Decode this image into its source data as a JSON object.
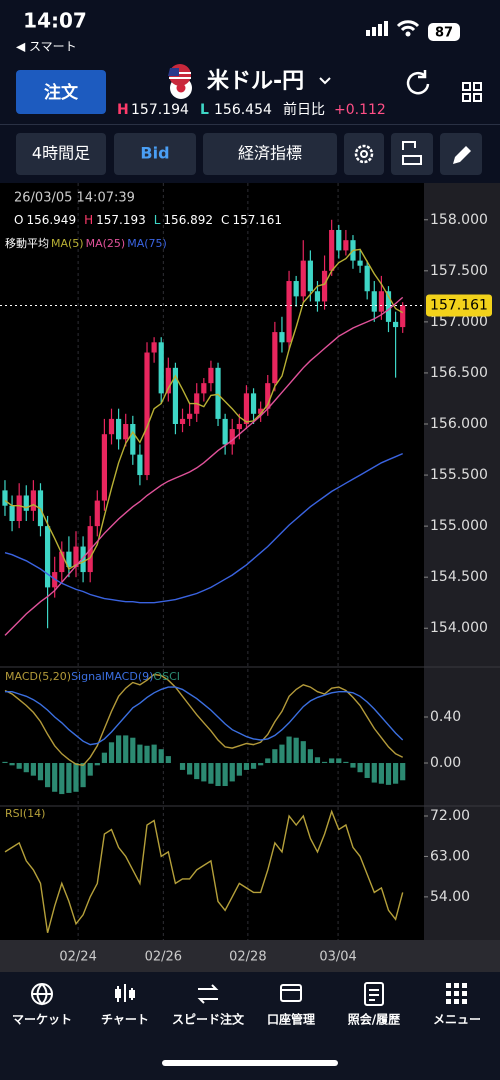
{
  "status_bar": {
    "time": "14:07",
    "back": "◀ スマート",
    "battery": "87"
  },
  "header": {
    "order_button": "注文",
    "title": "米ドル-円",
    "high_label": "H",
    "high": "157.194",
    "low_label": "L",
    "low": "156.454",
    "change_label": "前日比",
    "change": "+0.112"
  },
  "toolbar": {
    "timeframe": "4時間足",
    "price_type": "Bid",
    "indicators_button": "経済指標"
  },
  "chart_data": [
    {
      "type": "candlestick",
      "timestamp": "26/03/05 14:07:39",
      "ohlc_labels": [
        "O",
        "H",
        "L",
        "C"
      ],
      "overlay_label": "移動平均",
      "up_color": "#e8265e",
      "down_color": "#3ed6c6",
      "last_price_color": "#f2d21b",
      "grid": true,
      "xlim": [
        -0.7,
        59
      ],
      "xticks": [
        {
          "value": 10.3,
          "label": "02/24"
        },
        {
          "value": 22.3,
          "label": "02/26"
        },
        {
          "value": 34.2,
          "label": "02/28"
        },
        {
          "value": 46.9,
          "label": "03/04"
        }
      ],
      "ylim": [
        153.64,
        158.36
      ],
      "yticks": [
        {
          "value": 158,
          "label": "158.000"
        },
        {
          "value": 157.5,
          "label": "157.500"
        },
        {
          "value": 157,
          "label": "157.000"
        },
        {
          "value": 156.5,
          "label": "156.500"
        },
        {
          "value": 156,
          "label": "156.000"
        },
        {
          "value": 155.5,
          "label": "155.500"
        },
        {
          "value": 155,
          "label": "155.000"
        },
        {
          "value": 154.5,
          "label": "154.500"
        },
        {
          "value": 154,
          "label": "154.000"
        }
      ],
      "open": [
        155.35,
        155.2,
        155.05,
        155.3,
        155.15,
        155.35,
        155.0,
        154.4,
        154.55,
        154.75,
        154.6,
        154.8,
        154.55,
        155.0,
        155.25,
        155.9,
        156.05,
        155.85,
        156.0,
        155.7,
        155.5,
        156.7,
        156.8,
        156.3,
        156.55,
        156.0,
        156.05,
        156.1,
        156.3,
        156.4,
        156.55,
        156.05,
        155.8,
        155.95,
        156.0,
        156.3,
        156.1,
        156.15,
        156.4,
        156.9,
        156.8,
        157.4,
        157.25,
        157.6,
        157.3,
        157.2,
        157.5,
        157.9,
        157.7,
        157.8,
        157.6,
        157.55,
        157.3,
        157.1,
        157.3,
        157.0,
        156.949
      ],
      "high": [
        155.45,
        155.3,
        155.42,
        155.4,
        155.45,
        155.42,
        155.1,
        154.7,
        154.85,
        154.9,
        154.95,
        154.9,
        155.1,
        155.35,
        156.05,
        156.15,
        156.15,
        156.1,
        156.08,
        155.8,
        156.8,
        156.85,
        156.85,
        156.65,
        156.6,
        156.15,
        156.2,
        156.4,
        156.45,
        156.62,
        156.6,
        156.1,
        156.05,
        156.1,
        156.38,
        156.35,
        156.22,
        156.48,
        157.0,
        157.05,
        157.5,
        157.45,
        157.8,
        157.7,
        157.4,
        157.65,
        158.0,
        157.95,
        157.9,
        157.85,
        157.7,
        157.6,
        157.4,
        157.45,
        157.35,
        157.1,
        157.193
      ],
      "low": [
        155.1,
        154.95,
        154.98,
        155.05,
        155.05,
        154.9,
        154.0,
        154.3,
        154.45,
        154.5,
        154.5,
        154.45,
        154.45,
        154.9,
        155.15,
        155.8,
        155.75,
        155.78,
        155.6,
        155.4,
        155.45,
        156.6,
        156.2,
        156.22,
        155.9,
        155.92,
        155.98,
        156.02,
        156.22,
        156.32,
        155.98,
        155.7,
        155.7,
        155.85,
        155.95,
        156.0,
        156.02,
        156.08,
        156.32,
        156.7,
        156.72,
        157.15,
        157.2,
        157.2,
        157.1,
        157.12,
        157.45,
        157.62,
        157.65,
        157.52,
        157.48,
        157.22,
        157.0,
        157.02,
        156.9,
        156.454,
        156.892
      ],
      "close": [
        155.2,
        155.05,
        155.3,
        155.15,
        155.35,
        155.0,
        154.4,
        154.55,
        154.75,
        154.6,
        154.8,
        154.55,
        155.0,
        155.25,
        155.9,
        156.05,
        155.85,
        156.0,
        155.7,
        155.5,
        156.7,
        156.8,
        156.3,
        156.55,
        156.0,
        156.05,
        156.1,
        156.3,
        156.4,
        156.55,
        156.05,
        155.8,
        155.95,
        156.0,
        156.3,
        156.1,
        156.15,
        156.4,
        156.9,
        156.8,
        157.4,
        157.25,
        157.6,
        157.3,
        157.2,
        157.5,
        157.9,
        157.7,
        157.8,
        157.6,
        157.55,
        157.3,
        157.1,
        157.3,
        157.0,
        156.949,
        157.161
      ],
      "series": [
        {
          "name": "MA(5)",
          "color": "#b8b034",
          "values": [
            155.25,
            155.2,
            155.2,
            155.18,
            155.21,
            155.17,
            155.02,
            154.88,
            154.73,
            154.58,
            154.62,
            154.65,
            154.69,
            154.82,
            155.1,
            155.37,
            155.62,
            155.81,
            155.92,
            155.82,
            155.97,
            156.15,
            156.2,
            156.35,
            156.47,
            156.34,
            156.2,
            156.2,
            156.17,
            156.28,
            156.29,
            156.22,
            156.15,
            156.07,
            156.02,
            156.03,
            156.1,
            156.19,
            156.37,
            156.47,
            156.73,
            156.95,
            157.19,
            157.27,
            157.35,
            157.37,
            157.5,
            157.58,
            157.62,
            157.7,
            157.71,
            157.59,
            157.47,
            157.37,
            157.25,
            157.13,
            157.09
          ]
        },
        {
          "name": "MA(25)",
          "color": "#e0529a",
          "values": [
            153.93,
            154.0,
            154.07,
            154.14,
            154.2,
            154.26,
            154.31,
            154.37,
            154.45,
            154.53,
            154.61,
            154.69,
            154.77,
            154.85,
            154.93,
            155.0,
            155.07,
            155.13,
            155.19,
            155.24,
            155.3,
            155.35,
            155.4,
            155.44,
            155.47,
            155.5,
            155.53,
            155.57,
            155.62,
            155.68,
            155.74,
            155.79,
            155.84,
            155.9,
            155.96,
            156.02,
            156.08,
            156.15,
            156.23,
            156.31,
            156.39,
            156.47,
            156.55,
            156.62,
            156.68,
            156.74,
            156.8,
            156.86,
            156.9,
            156.94,
            156.97,
            157.0,
            157.03,
            157.07,
            157.12,
            157.18,
            157.24
          ]
        },
        {
          "name": "MA(75)",
          "color": "#3a63e0",
          "values": [
            154.74,
            154.72,
            154.69,
            154.66,
            154.62,
            154.58,
            154.53,
            154.48,
            154.44,
            154.41,
            154.38,
            154.36,
            154.33,
            154.31,
            154.29,
            154.28,
            154.27,
            154.26,
            154.26,
            154.25,
            154.25,
            154.25,
            154.26,
            154.27,
            154.28,
            154.3,
            154.32,
            154.34,
            154.37,
            154.4,
            154.44,
            154.48,
            154.52,
            154.57,
            154.62,
            154.68,
            154.74,
            154.8,
            154.87,
            154.94,
            155.01,
            155.07,
            155.13,
            155.19,
            155.24,
            155.29,
            155.34,
            155.38,
            155.42,
            155.46,
            155.5,
            155.54,
            155.58,
            155.62,
            155.65,
            155.68,
            155.71
          ]
        }
      ]
    },
    {
      "type": "macd",
      "ylim": [
        -0.365,
        0.826
      ],
      "yticks": [
        {
          "value": 0.4,
          "label": "0.40"
        },
        {
          "value": 0,
          "label": "0.00"
        }
      ],
      "series": [
        {
          "name": "MACD(5,20)",
          "color": "#b39a3a",
          "values": [
            0.63,
            0.6,
            0.55,
            0.5,
            0.44,
            0.36,
            0.25,
            0.15,
            0.08,
            0.03,
            -0.01,
            -0.02,
            0.05,
            0.15,
            0.3,
            0.45,
            0.58,
            0.65,
            0.7,
            0.68,
            0.72,
            0.77,
            0.76,
            0.72,
            0.66,
            0.58,
            0.5,
            0.42,
            0.35,
            0.28,
            0.2,
            0.14,
            0.13,
            0.15,
            0.17,
            0.16,
            0.18,
            0.25,
            0.36,
            0.45,
            0.58,
            0.64,
            0.68,
            0.66,
            0.62,
            0.6,
            0.65,
            0.66,
            0.63,
            0.57,
            0.5,
            0.4,
            0.3,
            0.22,
            0.14,
            0.08,
            0.05
          ]
        },
        {
          "name": "SignalMACD(9)",
          "color": "#3b6fe0",
          "values": [
            0.62,
            0.62,
            0.6,
            0.58,
            0.55,
            0.51,
            0.46,
            0.4,
            0.35,
            0.29,
            0.24,
            0.19,
            0.16,
            0.17,
            0.21,
            0.27,
            0.34,
            0.41,
            0.48,
            0.52,
            0.57,
            0.61,
            0.64,
            0.66,
            0.66,
            0.64,
            0.6,
            0.56,
            0.51,
            0.46,
            0.4,
            0.34,
            0.29,
            0.26,
            0.23,
            0.21,
            0.2,
            0.21,
            0.24,
            0.29,
            0.35,
            0.42,
            0.49,
            0.54,
            0.57,
            0.59,
            0.61,
            0.62,
            0.62,
            0.61,
            0.58,
            0.53,
            0.47,
            0.4,
            0.33,
            0.26,
            0.2
          ]
        },
        {
          "name": "OSCI",
          "color": "#2c8a72",
          "kind": "bar",
          "values": [
            0.01,
            -0.02,
            -0.05,
            -0.08,
            -0.11,
            -0.15,
            -0.21,
            -0.25,
            -0.27,
            -0.26,
            -0.25,
            -0.21,
            -0.11,
            -0.02,
            0.09,
            0.18,
            0.24,
            0.24,
            0.22,
            0.16,
            0.15,
            0.16,
            0.12,
            0.06,
            0,
            -0.06,
            -0.1,
            -0.14,
            -0.16,
            -0.18,
            -0.2,
            -0.2,
            -0.16,
            -0.11,
            -0.06,
            -0.05,
            -0.02,
            0.04,
            0.12,
            0.16,
            0.23,
            0.22,
            0.19,
            0.12,
            0.05,
            0.01,
            0.04,
            0.04,
            0.01,
            -0.04,
            -0.08,
            -0.13,
            -0.17,
            -0.18,
            -0.19,
            -0.18,
            -0.15
          ]
        }
      ]
    },
    {
      "type": "line",
      "ylim": [
        44.4,
        74
      ],
      "yticks": [
        {
          "value": 72,
          "label": "72.00"
        },
        {
          "value": 63,
          "label": "63.00"
        },
        {
          "value": 54,
          "label": "54.00"
        }
      ],
      "series": [
        {
          "name": "RSI(14)",
          "color": "#b5a03a",
          "values": [
            64,
            65,
            66,
            62,
            60,
            57,
            46,
            52,
            57,
            53,
            48,
            50,
            54,
            57,
            68,
            69,
            65,
            63,
            60,
            57,
            70,
            71,
            63,
            64,
            57,
            58,
            58,
            60,
            61,
            62,
            53,
            51,
            54,
            57,
            56,
            55,
            55,
            60,
            66,
            64,
            72,
            70,
            72,
            67,
            64,
            68,
            73,
            69,
            70,
            65,
            63,
            59,
            55,
            56,
            51,
            49,
            55
          ]
        }
      ]
    }
  ],
  "nav": [
    "マーケット",
    "チャート",
    "スピード注文",
    "口座管理",
    "照会/履歴",
    "メニュー"
  ]
}
